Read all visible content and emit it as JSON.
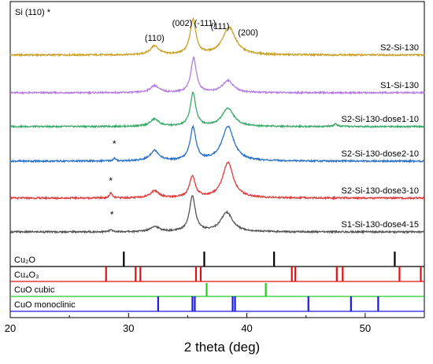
{
  "chart_data": {
    "type": "line",
    "xlabel": "2 theta (deg)",
    "xlim": [
      20,
      55
    ],
    "x_ticks": [
      20,
      30,
      40,
      50
    ],
    "si_note": "Si (110) *",
    "peak_labels": [
      {
        "text": "(110)",
        "x": 32.2
      },
      {
        "text": "(002)",
        "x": 34.8
      },
      {
        "text": "(-111)",
        "x": 36.2
      },
      {
        "text": "(111)",
        "x": 38.0
      },
      {
        "text": "(200)",
        "x": 39.7
      }
    ],
    "series": [
      {
        "name": "S2-Si-130",
        "color": "#c9a227",
        "peaks": [
          {
            "x": 32.2,
            "h": 0.25,
            "w": 0.45
          },
          {
            "x": 35.45,
            "h": 1.0,
            "w": 0.3
          },
          {
            "x": 38.5,
            "h": 0.8,
            "w": 0.65
          }
        ],
        "star": null
      },
      {
        "name": "S1-Si-130",
        "color": "#b57ee0",
        "peaks": [
          {
            "x": 32.2,
            "h": 0.2,
            "w": 0.45
          },
          {
            "x": 35.5,
            "h": 1.0,
            "w": 0.28
          },
          {
            "x": 38.4,
            "h": 0.35,
            "w": 0.55
          }
        ],
        "star": null
      },
      {
        "name": "S2-Si-130-dose1-10",
        "color": "#3aaa6a",
        "peaks": [
          {
            "x": 32.2,
            "h": 0.22,
            "w": 0.45
          },
          {
            "x": 35.45,
            "h": 1.0,
            "w": 0.28
          },
          {
            "x": 38.4,
            "h": 0.55,
            "w": 0.6
          },
          {
            "x": 47.5,
            "h": 0.08,
            "w": 0.15
          }
        ],
        "star": null
      },
      {
        "name": "S2-Si-130-dose2-10",
        "color": "#2a72c8",
        "peaks": [
          {
            "x": 28.8,
            "h": 0.08,
            "w": 0.12
          },
          {
            "x": 32.2,
            "h": 0.3,
            "w": 0.45
          },
          {
            "x": 35.45,
            "h": 0.95,
            "w": 0.3
          },
          {
            "x": 38.4,
            "h": 1.0,
            "w": 0.6
          }
        ],
        "star": 28.8
      },
      {
        "name": "S2-Si-130-dose3-10",
        "color": "#e03c3c",
        "peaks": [
          {
            "x": 28.5,
            "h": 0.15,
            "w": 0.12
          },
          {
            "x": 32.2,
            "h": 0.2,
            "w": 0.45
          },
          {
            "x": 35.4,
            "h": 0.6,
            "w": 0.3
          },
          {
            "x": 38.4,
            "h": 1.0,
            "w": 0.55
          }
        ],
        "star": 28.5
      },
      {
        "name": "S1-Si-130-dose4-15",
        "color": "#555555",
        "peaks": [
          {
            "x": 28.5,
            "h": 0.05,
            "w": 0.15
          },
          {
            "x": 32.2,
            "h": 0.15,
            "w": 0.45
          },
          {
            "x": 35.4,
            "h": 1.0,
            "w": 0.3
          },
          {
            "x": 38.3,
            "h": 0.55,
            "w": 0.6
          }
        ],
        "star": 28.6
      }
    ],
    "references": [
      {
        "name": "Cu₂O",
        "color": "#000000",
        "lines": [
          {
            "x": 29.6,
            "h": 1.0
          },
          {
            "x": 36.4,
            "h": 1.0
          },
          {
            "x": 42.3,
            "h": 1.0
          },
          {
            "x": 52.5,
            "h": 1.0
          }
        ]
      },
      {
        "name": "Cu₄O₃",
        "color": "#e01010",
        "lines": [
          {
            "x": 28.1,
            "h": 1.0
          },
          {
            "x": 30.6,
            "h": 1.0
          },
          {
            "x": 31.0,
            "h": 1.0
          },
          {
            "x": 35.7,
            "h": 1.0
          },
          {
            "x": 36.1,
            "h": 1.0
          },
          {
            "x": 43.8,
            "h": 1.0
          },
          {
            "x": 44.1,
            "h": 1.0
          },
          {
            "x": 47.6,
            "h": 1.0
          },
          {
            "x": 48.1,
            "h": 1.0
          },
          {
            "x": 52.9,
            "h": 1.0
          },
          {
            "x": 54.7,
            "h": 1.0
          }
        ]
      },
      {
        "name": "CuO cubic",
        "color": "#22cc22",
        "lines": [
          {
            "x": 36.6,
            "h": 1.0
          },
          {
            "x": 41.6,
            "h": 1.0
          }
        ]
      },
      {
        "name": "CuO monoclinic",
        "color": "#1a1ae0",
        "lines": [
          {
            "x": 32.5,
            "h": 1.0
          },
          {
            "x": 35.4,
            "h": 1.0
          },
          {
            "x": 35.6,
            "h": 1.0
          },
          {
            "x": 38.8,
            "h": 1.0
          },
          {
            "x": 39.0,
            "h": 1.0
          },
          {
            "x": 45.2,
            "h": 1.0
          },
          {
            "x": 48.8,
            "h": 1.0
          },
          {
            "x": 51.1,
            "h": 1.0
          }
        ]
      }
    ]
  }
}
